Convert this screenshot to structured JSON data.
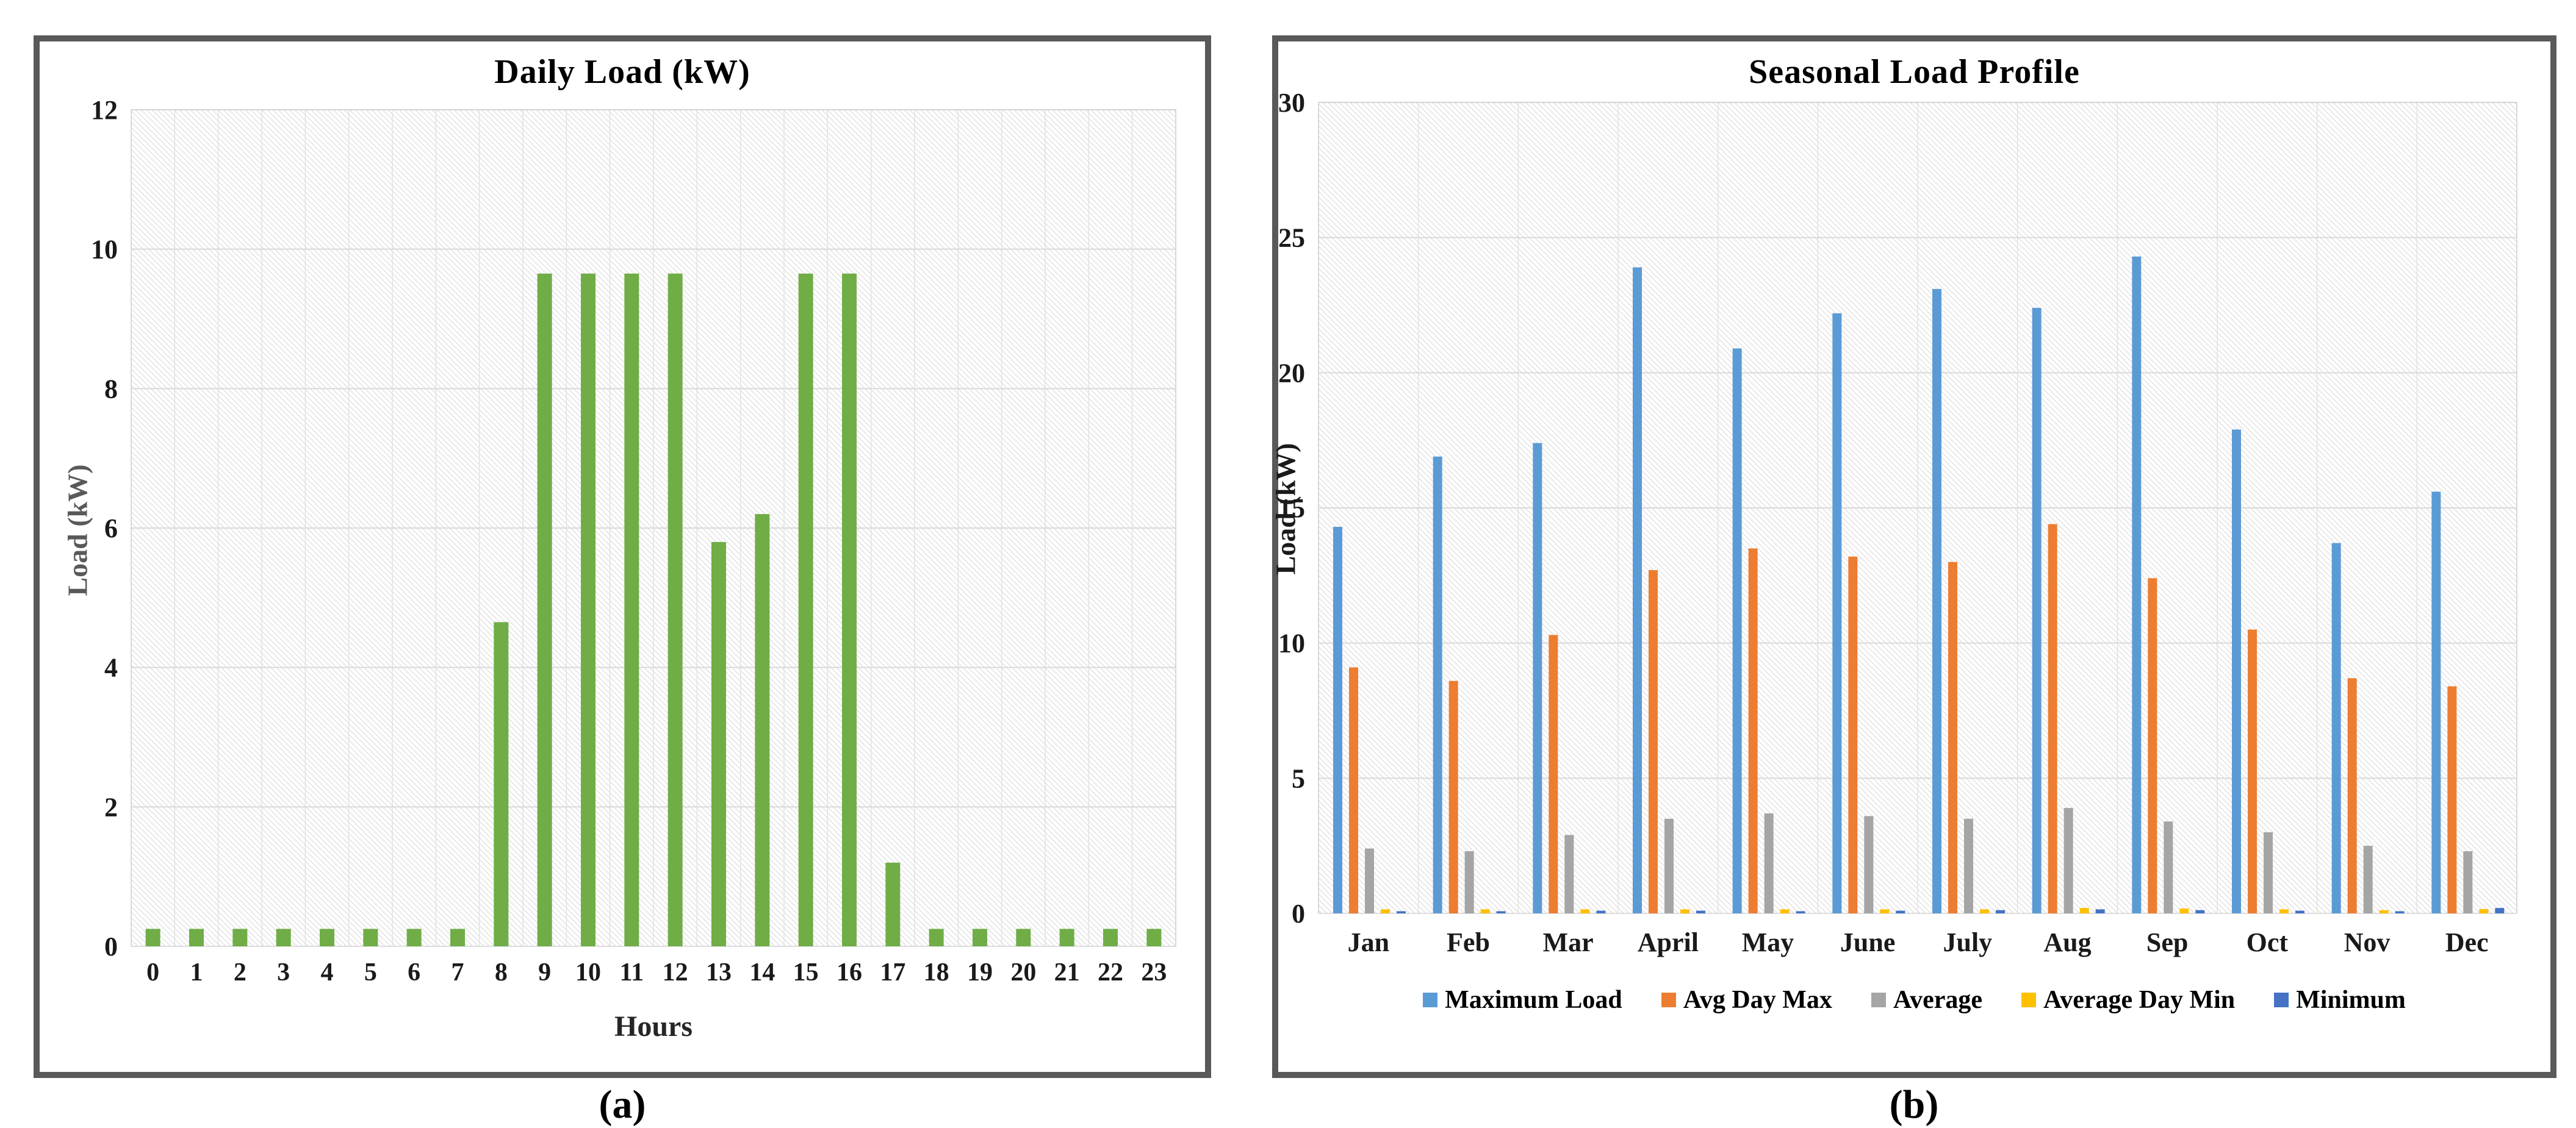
{
  "colors": {
    "panel_border": "#595959",
    "gridline_h": "#d9d9d9",
    "gridline_v": "#e2e2e2",
    "hatch": "#e4e4e4",
    "plot_outline": "#d2d2d2",
    "daily_bar_green": "#70AD47"
  },
  "captions": {
    "a": "(a)",
    "b": "(b)"
  },
  "chart_data": [
    {
      "type": "bar",
      "title": "Daily Load (kW)",
      "xlabel": "Hours",
      "ylabel": "Load (kW)",
      "ylim": [
        0,
        12
      ],
      "ytick_step": 2,
      "grid": true,
      "legend_position": "none",
      "bar_color": "#70AD47",
      "categories": [
        "0",
        "1",
        "2",
        "3",
        "4",
        "5",
        "6",
        "7",
        "8",
        "9",
        "10",
        "11",
        "12",
        "13",
        "14",
        "15",
        "16",
        "17",
        "18",
        "19",
        "20",
        "21",
        "22",
        "23"
      ],
      "values": [
        0.25,
        0.25,
        0.25,
        0.25,
        0.25,
        0.25,
        0.25,
        0.25,
        4.65,
        9.65,
        9.65,
        9.65,
        9.65,
        5.8,
        6.2,
        9.65,
        9.65,
        1.2,
        0.25,
        0.25,
        0.25,
        0.25,
        0.25,
        0.25
      ]
    },
    {
      "type": "bar",
      "title": "Seasonal Load Profile",
      "xlabel": "",
      "ylabel": "Load (kW)",
      "ylim": [
        0,
        30
      ],
      "ytick_step": 5,
      "grid": true,
      "legend_position": "bottom",
      "categories": [
        "Jan",
        "Feb",
        "Mar",
        "April",
        "May",
        "June",
        "July",
        "Aug",
        "Sep",
        "Oct",
        "Nov",
        "Dec"
      ],
      "series": [
        {
          "name": "Maximum Load",
          "color": "#5B9BD5",
          "values": [
            14.3,
            16.9,
            17.4,
            23.9,
            20.9,
            22.2,
            23.1,
            22.4,
            24.3,
            17.9,
            13.7,
            15.6
          ]
        },
        {
          "name": "Avg Day Max",
          "color": "#ED7D31",
          "values": [
            9.1,
            8.6,
            10.3,
            12.7,
            13.5,
            13.2,
            13.0,
            14.4,
            12.4,
            10.5,
            8.7,
            8.4
          ]
        },
        {
          "name": "Average",
          "color": "#A5A5A5",
          "values": [
            2.4,
            2.3,
            2.9,
            3.5,
            3.7,
            3.6,
            3.5,
            3.9,
            3.4,
            3.0,
            2.5,
            2.3
          ]
        },
        {
          "name": "Average Day Min",
          "color": "#FFC000",
          "values": [
            0.15,
            0.15,
            0.15,
            0.15,
            0.15,
            0.15,
            0.15,
            0.2,
            0.18,
            0.15,
            0.12,
            0.16
          ]
        },
        {
          "name": "Minimum",
          "color": "#4472C4",
          "values": [
            0.08,
            0.08,
            0.1,
            0.1,
            0.08,
            0.1,
            0.12,
            0.15,
            0.12,
            0.1,
            0.08,
            0.2
          ]
        }
      ]
    }
  ]
}
